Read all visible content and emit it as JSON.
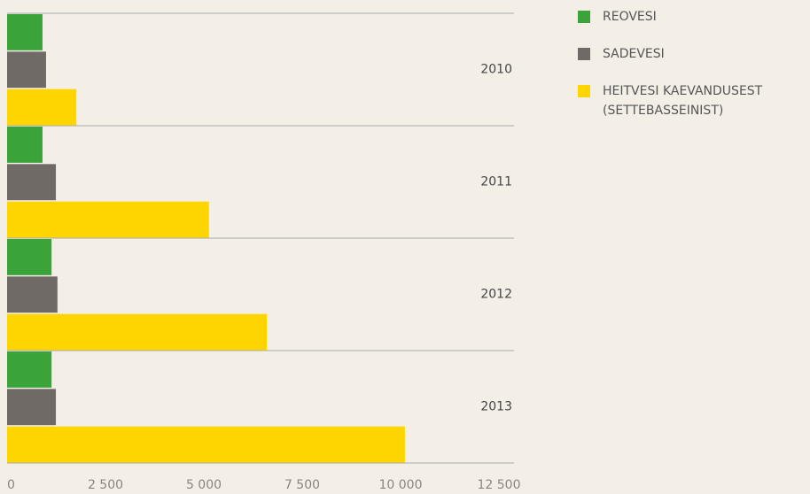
{
  "chart_data": {
    "type": "barh",
    "categories": [
      "2010",
      "2011",
      "2012",
      "2013"
    ],
    "series": [
      {
        "name": "REOVESI",
        "color": "#3aa33a",
        "values": [
          900,
          900,
          1130,
          1130
        ]
      },
      {
        "name": "SADEVESI",
        "color": "#6f6a66",
        "values": [
          990,
          1240,
          1280,
          1240
        ]
      },
      {
        "name": "HEITVESI KAEVANDUSEST (SETTEBASSEINIST)",
        "color": "#ffd500",
        "values": [
          1760,
          5130,
          6600,
          10110
        ]
      }
    ],
    "xlim": [
      0,
      12500
    ],
    "xticks": [
      0,
      {
        "value": 2500,
        "label": "2 500"
      },
      {
        "value": 5000,
        "label": "5 000"
      },
      {
        "value": 7500,
        "label": "7 500"
      },
      {
        "value": 10000,
        "label": "10 000"
      },
      {
        "value": 12500,
        "label": "12 500"
      }
    ],
    "legend": "upper right"
  }
}
